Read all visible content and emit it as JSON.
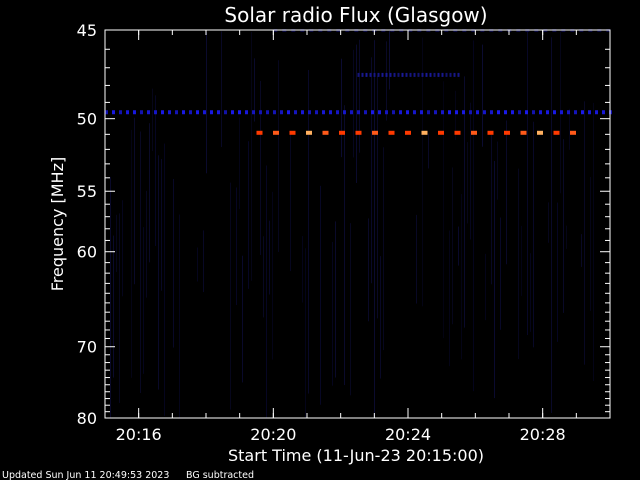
{
  "chart_data": {
    "type": "heatmap",
    "title": "Solar radio Flux (Glasgow)",
    "xlabel": "Start Time (11-Jun-23 20:15:00)",
    "ylabel": "Frequency [MHz]",
    "x_unit": "minutes",
    "xlim": [
      "20:15:00",
      "20:30:00"
    ],
    "ylim": [
      45,
      80
    ],
    "y_inverted": true,
    "y_scale": "reciprocal",
    "x_ticks": [
      "20:16",
      "20:20",
      "20:24",
      "20:28"
    ],
    "y_ticks": [
      45,
      50,
      55,
      60,
      70,
      80
    ],
    "features": [
      {
        "name": "persistent-emission",
        "frequency_mhz": 49.6,
        "time_range": [
          "20:15:00",
          "20:30:00"
        ],
        "intensity": "low",
        "color": "#1a1aee"
      },
      {
        "name": "persistent-emission",
        "frequency_mhz": 50.9,
        "time_range": [
          "20:19:30",
          "20:29:00"
        ],
        "intensity": "high",
        "color": "#ff3a00"
      },
      {
        "name": "persistent-emission",
        "frequency_mhz": 47.4,
        "time_range": [
          "20:22:30",
          "20:25:30"
        ],
        "intensity": "low",
        "color": "#1a1a99"
      },
      {
        "name": "persistent-emission",
        "frequency_mhz": 45.0,
        "time_range": [
          "20:20:00",
          "20:30:00"
        ],
        "intensity": "very-low",
        "color": "#111166"
      }
    ],
    "colors": {
      "background": "#000000",
      "noise": "#0a0a40",
      "low": "#1a1aee",
      "high": "#ff3a00",
      "peak": "#ffb060"
    }
  },
  "footer": {
    "updated": "Updated Sun Jun 11 20:49:53 2023",
    "note": "BG subtracted"
  }
}
